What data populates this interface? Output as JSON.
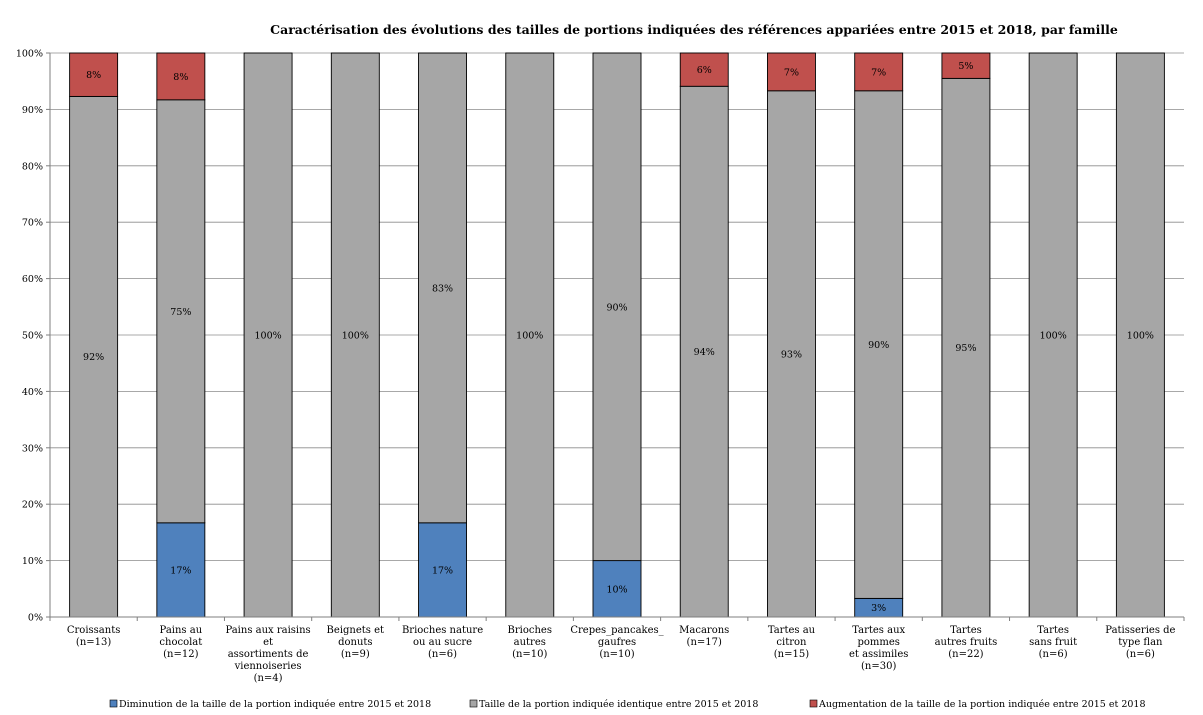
{
  "chart_data": {
    "type": "bar",
    "stacked": true,
    "title": "Caractérisation des évolutions des tailles de portions indiquées des références appariées entre 2015 et 2018, par famille",
    "ylim": [
      0,
      100
    ],
    "y_ticks": [
      "0%",
      "10%",
      "20%",
      "30%",
      "40%",
      "50%",
      "60%",
      "70%",
      "80%",
      "90%",
      "100%"
    ],
    "grid": true,
    "legend_position": "bottom",
    "categories": [
      [
        "Croissants",
        "(n=13)"
      ],
      [
        "Pains au",
        "chocolat",
        "(n=12)"
      ],
      [
        "Pains aux raisins",
        "et",
        "assortiments de",
        "viennoiseries",
        "(n=4)"
      ],
      [
        "Beignets et",
        "donuts",
        "(n=9)"
      ],
      [
        "Brioches nature",
        "ou au sucre",
        "(n=6)"
      ],
      [
        "Brioches",
        "autres",
        "(n=10)"
      ],
      [
        "Crepes_pancakes_",
        "gaufres",
        "(n=10)"
      ],
      [
        "Macarons",
        "(n=17)"
      ],
      [
        "Tartes au",
        "citron",
        "(n=15)"
      ],
      [
        "Tartes aux",
        "pommes",
        "et assimiles",
        "(n=30)"
      ],
      [
        "Tartes",
        "autres fruits",
        "(n=22)"
      ],
      [
        "Tartes",
        "sans fruit",
        "(n=6)"
      ],
      [
        "Patisseries de",
        "type flan",
        "(n=6)"
      ]
    ],
    "series": [
      {
        "name": "Diminution de la taille de la portion indiquée entre 2015 et 2018",
        "color": "#4f81bd",
        "values": [
          0,
          16.7,
          0,
          0,
          16.7,
          0,
          10,
          0,
          0,
          3.3,
          0,
          0,
          0
        ],
        "labels": [
          "",
          "17%",
          "",
          "",
          "17%",
          "",
          "10%",
          "",
          "",
          "3%",
          "",
          "",
          ""
        ]
      },
      {
        "name": "Taille de la portion indiquée identique entre 2015 et 2018",
        "color": "#a6a6a6",
        "values": [
          92.3,
          75,
          100,
          100,
          83.3,
          100,
          90,
          94.1,
          93.3,
          90,
          95.5,
          100,
          100
        ],
        "labels": [
          "92%",
          "75%",
          "100%",
          "100%",
          "83%",
          "100%",
          "90%",
          "94%",
          "93%",
          "90%",
          "95%",
          "100%",
          "100%"
        ]
      },
      {
        "name": "Augmentation de la taille de la portion indiquée entre 2015 et 2018",
        "color": "#c0504d",
        "values": [
          7.7,
          8.3,
          0,
          0,
          0,
          0,
          0,
          5.9,
          6.7,
          6.7,
          4.5,
          0,
          0
        ],
        "labels": [
          "8%",
          "8%",
          "",
          "",
          "",
          "",
          "",
          "6%",
          "7%",
          "7%",
          "5%",
          "",
          ""
        ]
      }
    ]
  }
}
